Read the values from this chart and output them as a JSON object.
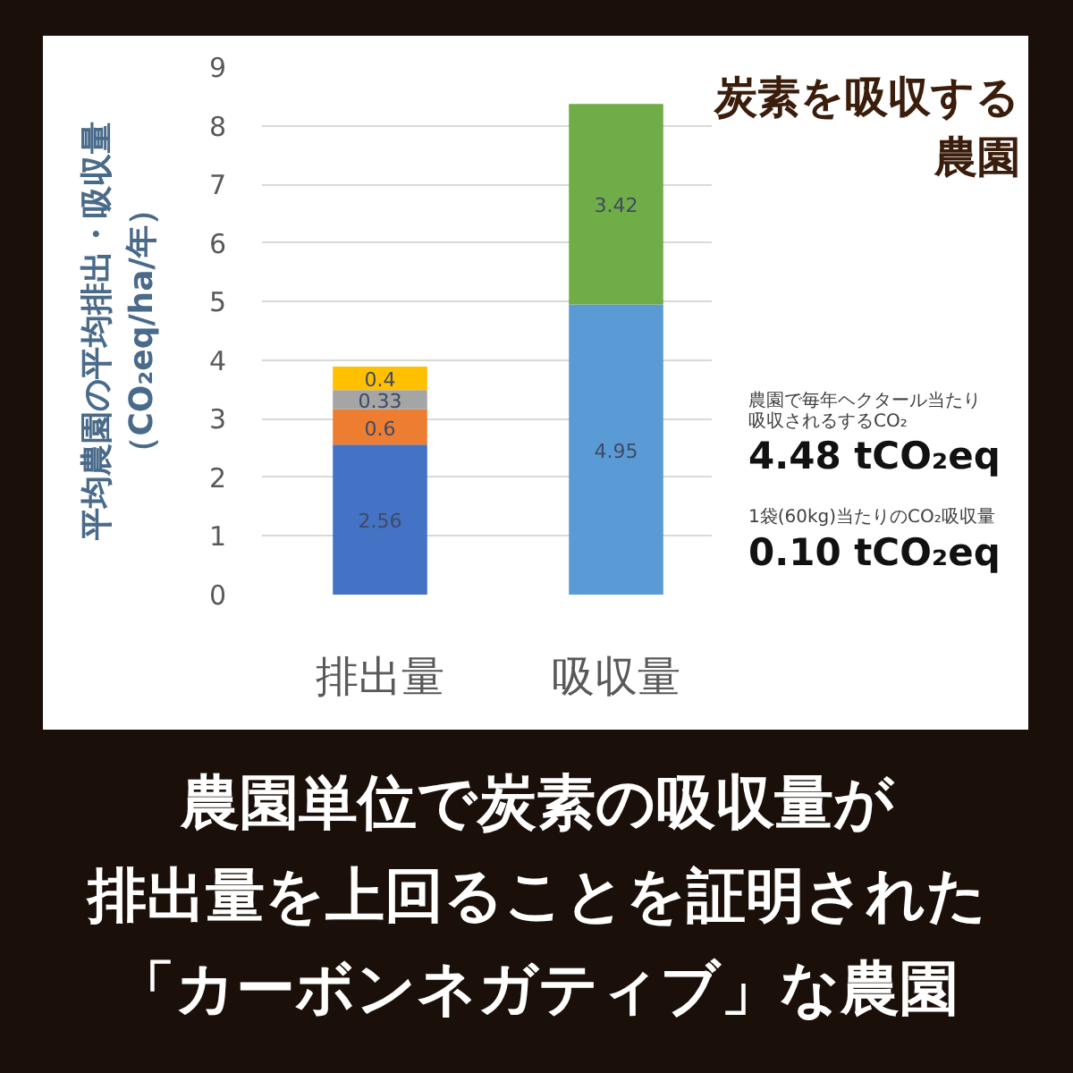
{
  "chart_data": {
    "type": "bar",
    "stacked": true,
    "title": "炭素を吸収する農園",
    "ylabel": "平均農園の平均排出・吸収量（CO₂eq/ha/年）",
    "categories": [
      "排出量",
      "吸収量"
    ],
    "series": [
      {
        "colors": [
          "#4472c4",
          "#5b9bd5"
        ],
        "values": [
          2.56,
          4.95
        ]
      },
      {
        "colors": [
          "#ed7d31",
          "#70ad47"
        ],
        "values": [
          0.6,
          3.42
        ]
      },
      {
        "color": "#a5a5a5",
        "values": [
          0.33,
          null
        ]
      },
      {
        "color": "#ffc000",
        "values": [
          0.4,
          null
        ]
      }
    ],
    "ylim": [
      0,
      9
    ],
    "yticks": [
      0,
      1,
      2,
      3,
      4,
      5,
      6,
      7,
      8,
      9
    ],
    "grid": "y",
    "data_labels": true,
    "annotations": [
      "農園で毎年ヘクタール当たり",
      "吸収されるするCO₂",
      "4.48 tCO₂eq",
      "1袋(60kg)当たりのCO₂吸収量",
      "0.10 tCO₂eq",
      "農園単位で炭素の吸収量が",
      "排出量を上回ることを証明された",
      "「カーボンネガティブ」な農園"
    ]
  }
}
